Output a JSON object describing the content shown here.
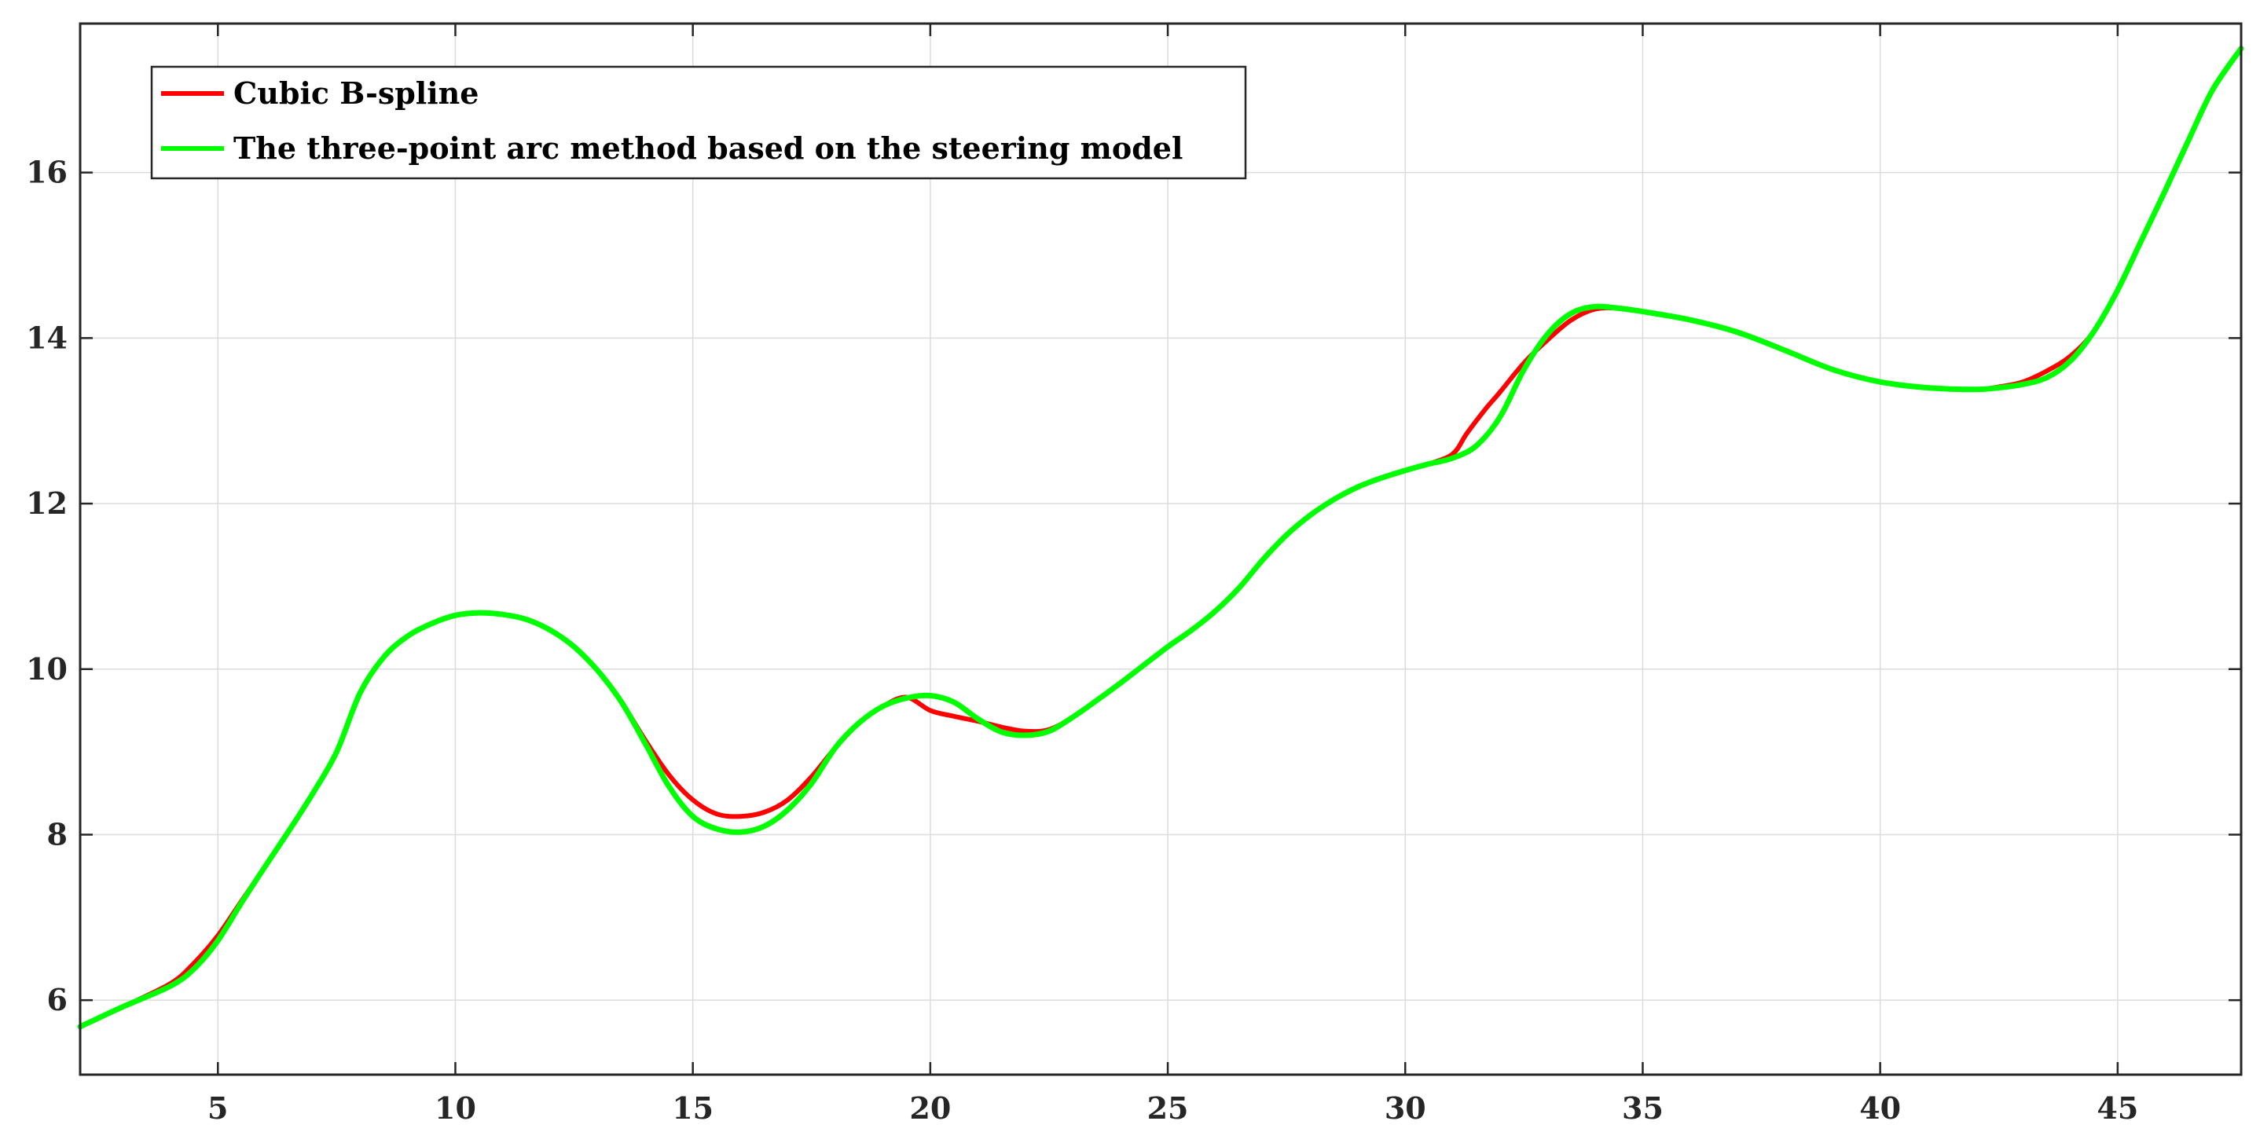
{
  "chart_data": {
    "type": "line",
    "title": "",
    "xlabel": "",
    "ylabel": "",
    "xlim": [
      2.1,
      47.6
    ],
    "ylim": [
      5.1,
      17.8
    ],
    "xticks": [
      5,
      10,
      15,
      20,
      25,
      30,
      35,
      40,
      45
    ],
    "yticks": [
      6,
      8,
      10,
      12,
      14,
      16
    ],
    "grid": true,
    "legend_position": "top-left",
    "series": [
      {
        "name": "Cubic B-spline",
        "color": "#ff0000",
        "points": [
          [
            2.1,
            5.68
          ],
          [
            3,
            5.92
          ],
          [
            4,
            6.2
          ],
          [
            4.5,
            6.45
          ],
          [
            5,
            6.78
          ],
          [
            5.5,
            7.2
          ],
          [
            6,
            7.62
          ],
          [
            6.5,
            8.05
          ],
          [
            7,
            8.5
          ],
          [
            7.5,
            9.0
          ],
          [
            8,
            9.72
          ],
          [
            8.5,
            10.15
          ],
          [
            9,
            10.4
          ],
          [
            9.5,
            10.55
          ],
          [
            10,
            10.65
          ],
          [
            10.5,
            10.68
          ],
          [
            11,
            10.66
          ],
          [
            11.5,
            10.6
          ],
          [
            12,
            10.47
          ],
          [
            12.5,
            10.27
          ],
          [
            13,
            9.98
          ],
          [
            13.5,
            9.6
          ],
          [
            14,
            9.14
          ],
          [
            14.5,
            8.72
          ],
          [
            15,
            8.42
          ],
          [
            15.5,
            8.25
          ],
          [
            16,
            8.22
          ],
          [
            16.5,
            8.27
          ],
          [
            17,
            8.42
          ],
          [
            17.5,
            8.7
          ],
          [
            18,
            9.05
          ],
          [
            18.5,
            9.35
          ],
          [
            19,
            9.55
          ],
          [
            19.5,
            9.66
          ],
          [
            20,
            9.5
          ],
          [
            20.5,
            9.43
          ],
          [
            21,
            9.37
          ],
          [
            21.5,
            9.3
          ],
          [
            22,
            9.25
          ],
          [
            22.5,
            9.27
          ],
          [
            23,
            9.42
          ],
          [
            23.5,
            9.62
          ],
          [
            24,
            9.83
          ],
          [
            24.5,
            10.05
          ],
          [
            25,
            10.27
          ],
          [
            25.5,
            10.47
          ],
          [
            26,
            10.7
          ],
          [
            26.5,
            10.98
          ],
          [
            27,
            11.32
          ],
          [
            27.5,
            11.62
          ],
          [
            28,
            11.86
          ],
          [
            28.5,
            12.05
          ],
          [
            29,
            12.2
          ],
          [
            29.5,
            12.31
          ],
          [
            30,
            12.4
          ],
          [
            30.5,
            12.48
          ],
          [
            31,
            12.6
          ],
          [
            31.3,
            12.85
          ],
          [
            31.7,
            13.15
          ],
          [
            32,
            13.35
          ],
          [
            32.5,
            13.7
          ],
          [
            33,
            13.98
          ],
          [
            33.5,
            14.22
          ],
          [
            34,
            14.35
          ],
          [
            34.5,
            14.36
          ],
          [
            35,
            14.32
          ],
          [
            36,
            14.22
          ],
          [
            37,
            14.07
          ],
          [
            38,
            13.85
          ],
          [
            39,
            13.62
          ],
          [
            40,
            13.47
          ],
          [
            41,
            13.4
          ],
          [
            42,
            13.38
          ],
          [
            42.5,
            13.41
          ],
          [
            43,
            13.47
          ],
          [
            43.5,
            13.6
          ],
          [
            44,
            13.78
          ],
          [
            44.5,
            14.08
          ],
          [
            45,
            14.58
          ],
          [
            45.5,
            15.18
          ],
          [
            46,
            15.78
          ],
          [
            46.5,
            16.4
          ],
          [
            47,
            17.0
          ],
          [
            47.6,
            17.5
          ]
        ]
      },
      {
        "name": "The three-point arc method based on the steering model",
        "color": "#00ff00",
        "points": [
          [
            2.1,
            5.68
          ],
          [
            3,
            5.92
          ],
          [
            4,
            6.17
          ],
          [
            4.5,
            6.38
          ],
          [
            5,
            6.72
          ],
          [
            5.5,
            7.18
          ],
          [
            6,
            7.62
          ],
          [
            6.5,
            8.05
          ],
          [
            7,
            8.5
          ],
          [
            7.5,
            9.0
          ],
          [
            8,
            9.72
          ],
          [
            8.5,
            10.15
          ],
          [
            9,
            10.4
          ],
          [
            9.5,
            10.55
          ],
          [
            10,
            10.65
          ],
          [
            10.5,
            10.68
          ],
          [
            11,
            10.66
          ],
          [
            11.5,
            10.6
          ],
          [
            12,
            10.47
          ],
          [
            12.5,
            10.27
          ],
          [
            13,
            9.98
          ],
          [
            13.5,
            9.6
          ],
          [
            14,
            9.1
          ],
          [
            14.5,
            8.58
          ],
          [
            15,
            8.22
          ],
          [
            15.5,
            8.07
          ],
          [
            16,
            8.03
          ],
          [
            16.5,
            8.1
          ],
          [
            17,
            8.3
          ],
          [
            17.5,
            8.62
          ],
          [
            18,
            9.05
          ],
          [
            18.5,
            9.35
          ],
          [
            19,
            9.55
          ],
          [
            19.5,
            9.65
          ],
          [
            20,
            9.68
          ],
          [
            20.5,
            9.6
          ],
          [
            21,
            9.4
          ],
          [
            21.5,
            9.24
          ],
          [
            22,
            9.2
          ],
          [
            22.5,
            9.25
          ],
          [
            23,
            9.42
          ],
          [
            23.5,
            9.62
          ],
          [
            24,
            9.83
          ],
          [
            24.5,
            10.05
          ],
          [
            25,
            10.27
          ],
          [
            25.5,
            10.47
          ],
          [
            26,
            10.7
          ],
          [
            26.5,
            10.98
          ],
          [
            27,
            11.32
          ],
          [
            27.5,
            11.62
          ],
          [
            28,
            11.86
          ],
          [
            28.5,
            12.05
          ],
          [
            29,
            12.2
          ],
          [
            29.5,
            12.31
          ],
          [
            30,
            12.4
          ],
          [
            30.5,
            12.48
          ],
          [
            31,
            12.55
          ],
          [
            31.5,
            12.7
          ],
          [
            32,
            13.05
          ],
          [
            32.5,
            13.62
          ],
          [
            33,
            14.05
          ],
          [
            33.5,
            14.3
          ],
          [
            34,
            14.38
          ],
          [
            34.5,
            14.36
          ],
          [
            35,
            14.32
          ],
          [
            36,
            14.22
          ],
          [
            37,
            14.07
          ],
          [
            38,
            13.85
          ],
          [
            39,
            13.62
          ],
          [
            40,
            13.47
          ],
          [
            41,
            13.4
          ],
          [
            42,
            13.38
          ],
          [
            42.5,
            13.4
          ],
          [
            43,
            13.44
          ],
          [
            43.5,
            13.52
          ],
          [
            44,
            13.72
          ],
          [
            44.5,
            14.08
          ],
          [
            45,
            14.58
          ],
          [
            45.5,
            15.18
          ],
          [
            46,
            15.78
          ],
          [
            46.5,
            16.4
          ],
          [
            47,
            17.0
          ],
          [
            47.6,
            17.5
          ]
        ]
      }
    ]
  }
}
